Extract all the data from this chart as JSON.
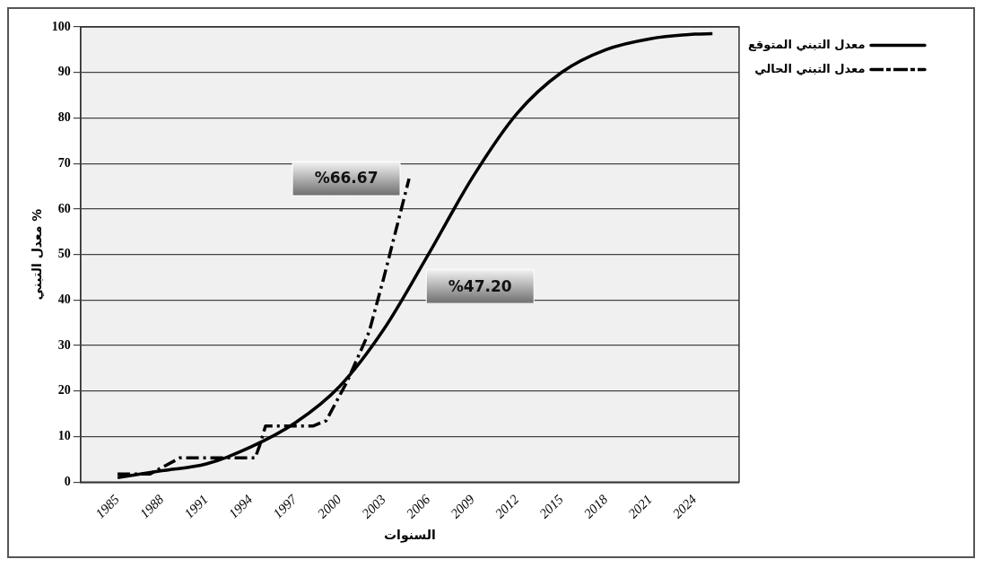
{
  "chart_data": {
    "type": "line",
    "xlabel": "السنوات",
    "ylabel": "معدل التبني %",
    "xlim": [
      1982.5,
      2027
    ],
    "xticks": [
      1985,
      1988,
      1991,
      1994,
      1997,
      2000,
      2003,
      2006,
      2009,
      2012,
      2015,
      2018,
      2021,
      2024
    ],
    "ylim": [
      0,
      100
    ],
    "yticks": [
      0,
      10,
      20,
      30,
      40,
      50,
      60,
      70,
      80,
      90,
      100
    ],
    "grid": "y",
    "legend": "top right",
    "marker": "none",
    "series": [
      {
        "name": "معدل التبني المتوقع",
        "color": "#000000",
        "line_style": "solid",
        "x": [
          1985,
          1988,
          1991,
          1994,
          1997,
          2000,
          2003,
          2006,
          2009,
          2012,
          2015,
          2018,
          2021,
          2024,
          2025.2
        ],
        "values": [
          1,
          2.5,
          4,
          7.7,
          13,
          21,
          33.6,
          50,
          67,
          81,
          90,
          95,
          97.4,
          98.4,
          98.5
        ]
      },
      {
        "name": "معدل التبني الحالي",
        "color": "#000000",
        "line_style": "dashed",
        "x": [
          1985,
          1987.2,
          1989.2,
          1994.3,
          1994.6,
          1995,
          1998.2,
          1999.1,
          2000.5,
          2002,
          2003,
          2004.7
        ],
        "values": [
          1.8,
          1.8,
          5.3,
          5.3,
          8,
          12.3,
          12.3,
          13.5,
          22,
          33,
          45,
          66.67
        ]
      }
    ],
    "annotations": [
      {
        "text": "%66.67",
        "x": 2004.7,
        "y": 66.67
      },
      "%47.20"
    ]
  }
}
